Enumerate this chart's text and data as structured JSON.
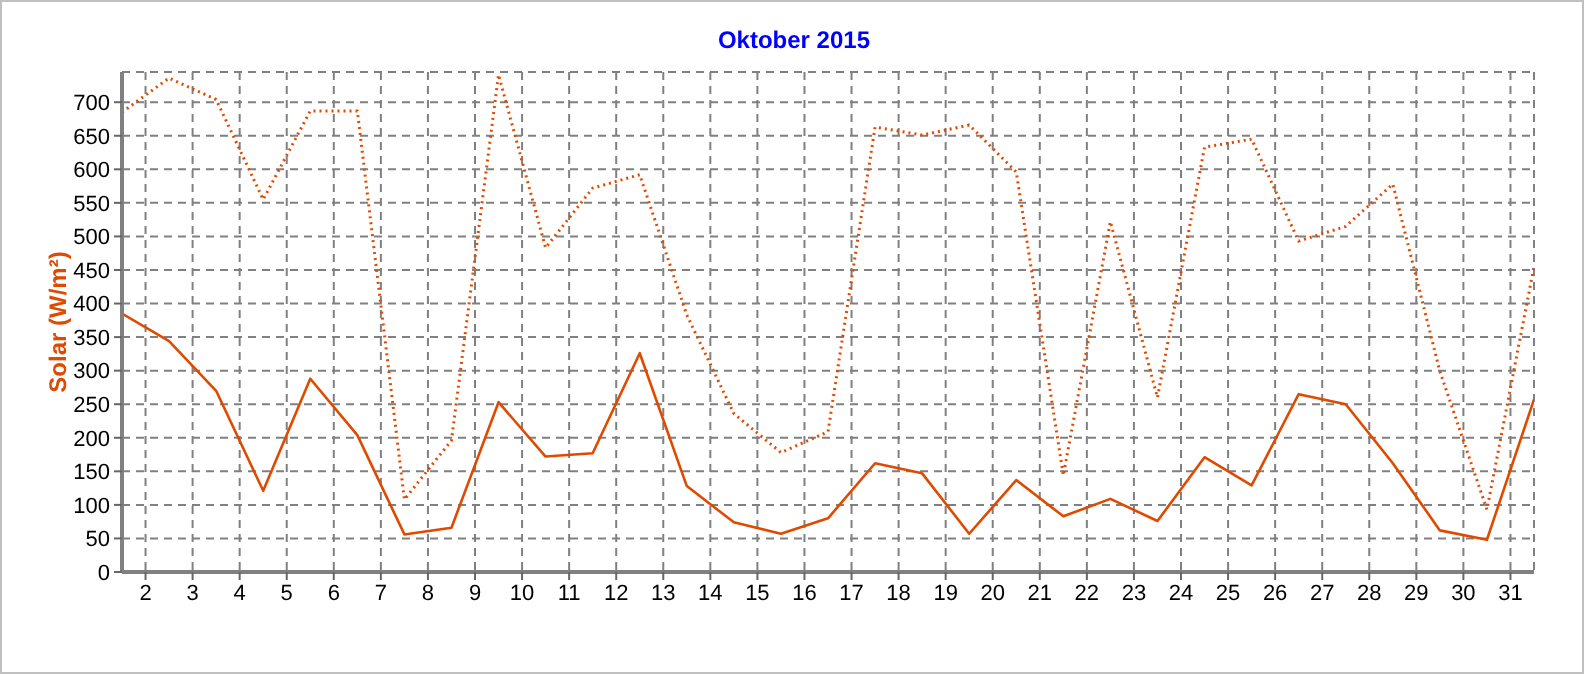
{
  "chart_data": {
    "type": "line",
    "title": "Oktober 2015",
    "ylabel": "Solar (W/m²)",
    "x": [
      1.5,
      2.5,
      3.5,
      4.5,
      5.5,
      6.5,
      7.5,
      8.5,
      9.5,
      10.5,
      11.5,
      12.5,
      13.5,
      14.5,
      15.5,
      16.5,
      17.5,
      18.5,
      19.5,
      20.5,
      21.5,
      22.5,
      23.5,
      24.5,
      25.5,
      26.5,
      27.5,
      28.5,
      29.5,
      30.5,
      31.5
    ],
    "series": [
      {
        "color": "#e04a00",
        "line_style": "dotted",
        "values": [
          685,
          736,
          704,
          555,
          687,
          687,
          108,
          196,
          741,
          483,
          572,
          592,
          383,
          236,
          178,
          209,
          663,
          651,
          666,
          596,
          144,
          522,
          260,
          633,
          645,
          493,
          515,
          578,
          299,
          93,
          455
        ]
      },
      {
        "color": "#e04a00",
        "line_style": "solid",
        "values": [
          385,
          344,
          270,
          121,
          288,
          204,
          56,
          66,
          253,
          172,
          177,
          326,
          128,
          74,
          57,
          80,
          162,
          147,
          57,
          137,
          83,
          109,
          76,
          171,
          129,
          265,
          250,
          162,
          62,
          48,
          257
        ]
      }
    ],
    "xlim": [
      1.5,
      31.5
    ],
    "xticks": [
      2,
      3,
      4,
      5,
      6,
      7,
      8,
      9,
      10,
      11,
      12,
      13,
      14,
      15,
      16,
      17,
      18,
      19,
      20,
      21,
      22,
      23,
      24,
      25,
      26,
      27,
      28,
      29,
      30,
      31
    ],
    "ylim": [
      0,
      745
    ],
    "yticks": [
      0,
      50,
      100,
      150,
      200,
      250,
      300,
      350,
      400,
      450,
      500,
      550,
      600,
      650,
      700
    ],
    "grid": true,
    "marker": "none",
    "legend": false
  }
}
